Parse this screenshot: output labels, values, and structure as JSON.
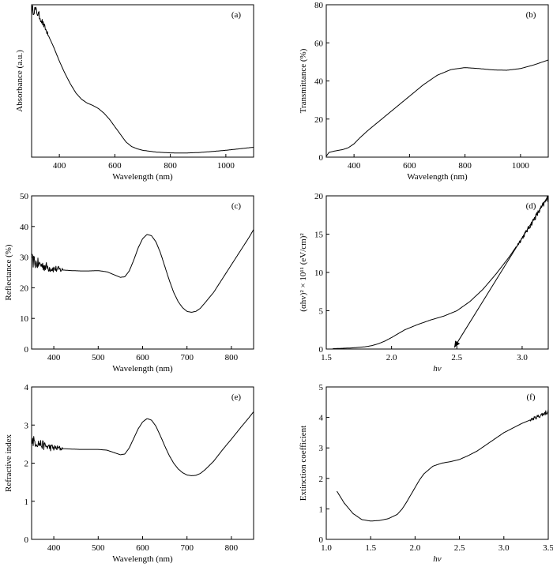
{
  "chart_data": [
    {
      "id": "a",
      "type": "line",
      "panel_label": "(a)",
      "xlabel": "Wavelength (nm)",
      "ylabel": "Absorbance (a.u.)",
      "xlim": [
        300,
        1100
      ],
      "ylim": [
        0,
        1
      ],
      "xticks": [
        400,
        600,
        800,
        1000
      ],
      "yticks": [],
      "noise": {
        "x_max": 360,
        "amp": 0.035
      },
      "series": [
        {
          "x": [
            300,
            310,
            320,
            330,
            340,
            360,
            380,
            400,
            420,
            440,
            460,
            480,
            500,
            520,
            540,
            560,
            580,
            600,
            620,
            640,
            660,
            680,
            700,
            750,
            800,
            850,
            900,
            950,
            1000,
            1050,
            1100
          ],
          "y": [
            0.96,
            0.97,
            0.95,
            0.92,
            0.88,
            0.8,
            0.72,
            0.63,
            0.55,
            0.48,
            0.42,
            0.38,
            0.355,
            0.34,
            0.32,
            0.29,
            0.25,
            0.2,
            0.15,
            0.1,
            0.07,
            0.055,
            0.045,
            0.033,
            0.028,
            0.027,
            0.03,
            0.037,
            0.045,
            0.055,
            0.065
          ]
        }
      ]
    },
    {
      "id": "b",
      "type": "line",
      "panel_label": "(b)",
      "xlabel": "Wavelength (nm)",
      "ylabel": "Transmittance (%)",
      "xlim": [
        300,
        1100
      ],
      "ylim": [
        0,
        80
      ],
      "xticks": [
        400,
        600,
        800,
        1000
      ],
      "yticks": [
        0,
        20,
        40,
        60,
        80
      ],
      "series": [
        {
          "x": [
            300,
            310,
            330,
            360,
            380,
            400,
            420,
            450,
            500,
            550,
            600,
            650,
            700,
            750,
            800,
            850,
            900,
            950,
            1000,
            1050,
            1100
          ],
          "y": [
            0.5,
            2.5,
            3.2,
            4,
            5,
            7,
            10,
            14,
            20,
            26,
            32,
            38,
            43,
            46,
            47,
            46.5,
            45.8,
            45.6,
            46.5,
            48.5,
            51
          ]
        }
      ]
    },
    {
      "id": "c",
      "type": "line",
      "panel_label": "(c)",
      "xlabel": "Wavelength (nm)",
      "ylabel": "Reflectance (%)",
      "xlim": [
        350,
        850
      ],
      "ylim": [
        0,
        50
      ],
      "xticks": [
        400,
        500,
        600,
        700,
        800
      ],
      "yticks": [
        0,
        10,
        20,
        30,
        40,
        50
      ],
      "noise": {
        "x_max": 420,
        "amp": 2.2
      },
      "series": [
        {
          "x": [
            350,
            360,
            370,
            380,
            390,
            400,
            420,
            440,
            460,
            480,
            500,
            520,
            540,
            550,
            560,
            570,
            580,
            590,
            600,
            610,
            620,
            630,
            640,
            650,
            660,
            670,
            680,
            690,
            700,
            710,
            720,
            730,
            740,
            760,
            780,
            800,
            820,
            840,
            850
          ],
          "y": [
            29,
            28,
            27.5,
            27,
            26.5,
            26.2,
            25.8,
            25.6,
            25.5,
            25.5,
            25.6,
            25.2,
            24.0,
            23.4,
            23.6,
            25.5,
            29,
            33,
            36,
            37.4,
            37,
            35,
            31.5,
            27,
            22.5,
            18.5,
            15.5,
            13.5,
            12.3,
            12.0,
            12.3,
            13.3,
            15,
            18.5,
            23,
            27.5,
            32,
            36.5,
            39
          ]
        }
      ]
    },
    {
      "id": "d",
      "type": "line",
      "panel_label": "(d)",
      "xlabel": "hv",
      "ylabel": "(αhv)² × 10¹¹ (eV/cm)²",
      "xlim": [
        1.5,
        3.2
      ],
      "ylim": [
        0,
        20
      ],
      "xticks": [
        1.5,
        2.0,
        2.5,
        3.0
      ],
      "yticks": [
        0,
        5,
        10,
        15,
        20
      ],
      "noise": {
        "x_min": 2.95,
        "amp": 0.45
      },
      "arrow": {
        "from": [
          3.2,
          20
        ],
        "to": [
          2.48,
          0.2
        ]
      },
      "series": [
        {
          "x": [
            1.55,
            1.6,
            1.7,
            1.8,
            1.85,
            1.9,
            1.95,
            2.0,
            2.05,
            2.1,
            2.2,
            2.3,
            2.4,
            2.5,
            2.6,
            2.7,
            2.8,
            2.9,
            3.0,
            3.05,
            3.1,
            3.15,
            3.2
          ],
          "y": [
            0.05,
            0.08,
            0.15,
            0.3,
            0.45,
            0.7,
            1.05,
            1.5,
            2.0,
            2.5,
            3.2,
            3.8,
            4.3,
            5.0,
            6.2,
            7.8,
            9.8,
            12.0,
            14.5,
            15.8,
            17.2,
            18.5,
            19.8
          ]
        }
      ]
    },
    {
      "id": "e",
      "type": "line",
      "panel_label": "(e)",
      "xlabel": "Wavelength (nm)",
      "ylabel": "Refractive index",
      "xlim": [
        350,
        850
      ],
      "ylim": [
        0,
        4
      ],
      "xticks": [
        400,
        500,
        600,
        700,
        800
      ],
      "yticks": [
        0,
        1,
        2,
        3,
        4
      ],
      "noise": {
        "x_max": 420,
        "amp": 0.15
      },
      "series": [
        {
          "x": [
            350,
            360,
            370,
            380,
            390,
            400,
            420,
            440,
            460,
            480,
            500,
            520,
            540,
            550,
            560,
            570,
            580,
            590,
            600,
            610,
            620,
            630,
            640,
            650,
            660,
            670,
            680,
            690,
            700,
            710,
            720,
            730,
            740,
            760,
            780,
            800,
            820,
            840,
            850
          ],
          "y": [
            2.6,
            2.55,
            2.5,
            2.45,
            2.42,
            2.4,
            2.38,
            2.37,
            2.36,
            2.36,
            2.36,
            2.34,
            2.26,
            2.22,
            2.24,
            2.4,
            2.65,
            2.9,
            3.08,
            3.17,
            3.13,
            2.97,
            2.72,
            2.45,
            2.2,
            2.0,
            1.85,
            1.75,
            1.69,
            1.67,
            1.68,
            1.73,
            1.82,
            2.05,
            2.35,
            2.63,
            2.92,
            3.2,
            3.35
          ]
        }
      ]
    },
    {
      "id": "f",
      "type": "line",
      "panel_label": "(f)",
      "xlabel": "hv",
      "ylabel": "Extinction coefficient",
      "xlim": [
        1.0,
        3.5
      ],
      "ylim": [
        0,
        5
      ],
      "xticks": [
        1.0,
        1.5,
        2.0,
        2.5,
        3.0,
        3.5
      ],
      "yticks": [
        0,
        1,
        2,
        3,
        4,
        5
      ],
      "noise": {
        "x_min": 3.3,
        "amp": 0.09
      },
      "series": [
        {
          "x": [
            1.12,
            1.2,
            1.3,
            1.4,
            1.5,
            1.6,
            1.7,
            1.8,
            1.85,
            1.9,
            1.95,
            2.0,
            2.05,
            2.1,
            2.2,
            2.3,
            2.4,
            2.5,
            2.6,
            2.7,
            2.8,
            2.9,
            3.0,
            3.1,
            3.2,
            3.3,
            3.4,
            3.5
          ],
          "y": [
            1.58,
            1.2,
            0.85,
            0.65,
            0.6,
            0.62,
            0.68,
            0.82,
            0.98,
            1.2,
            1.45,
            1.7,
            1.95,
            2.15,
            2.4,
            2.5,
            2.55,
            2.62,
            2.75,
            2.9,
            3.1,
            3.3,
            3.5,
            3.65,
            3.8,
            3.92,
            4.05,
            4.2
          ]
        }
      ]
    }
  ]
}
